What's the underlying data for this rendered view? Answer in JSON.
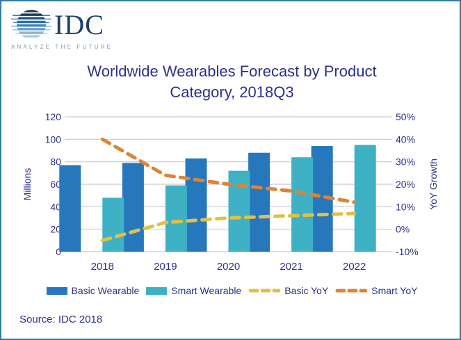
{
  "logo": {
    "brand": "IDC",
    "tagline": "ANALYZE THE FUTURE"
  },
  "header": {
    "title": "Worldwide Wearables Forecast by Product Category, 2018Q3",
    "title_lines": [
      "Worldwide Wearables Forecast by Product",
      "Category, 2018Q3"
    ]
  },
  "source": "Source: IDC 2018",
  "colors": {
    "border": "#2e7ca3",
    "title_text": "#2b3189",
    "axis_text": "#2b3189",
    "gridline": "#c7c9d4",
    "basic_bar": "#2777BC",
    "smart_bar": "#3FB1C5",
    "basic_yoy_line": "#E3C043",
    "smart_yoy_line": "#DD8435"
  },
  "chart_data": {
    "type": "bar",
    "subtype": "bar+line combo, dual axis",
    "title": "Worldwide Wearables Forecast by Product Category, 2018Q3",
    "categories": [
      "2018",
      "2019",
      "2020",
      "2021",
      "2022"
    ],
    "series": [
      {
        "name": "Basic Wearable",
        "type": "bar",
        "axis": "left",
        "color": "#2777BC",
        "values": [
          77,
          79,
          83,
          88,
          94
        ]
      },
      {
        "name": "Smart Wearable",
        "type": "bar",
        "axis": "left",
        "color": "#3FB1C5",
        "values": [
          48,
          59,
          72,
          84,
          95
        ]
      },
      {
        "name": "Basic YoY",
        "type": "line",
        "style": "dashed",
        "axis": "right",
        "color": "#E3C043",
        "values": [
          -5,
          3,
          5,
          6,
          7
        ]
      },
      {
        "name": "Smart YoY",
        "type": "line",
        "style": "dashed",
        "axis": "right",
        "color": "#DD8435",
        "values": [
          40,
          24,
          20,
          17,
          12
        ]
      }
    ],
    "left_axis": {
      "label": "Millions",
      "min": 0,
      "max": 120,
      "tick_step": 20,
      "ticks": [
        "0",
        "20",
        "40",
        "60",
        "80",
        "100",
        "120"
      ]
    },
    "right_axis": {
      "label": "YoY Growth",
      "min": -10,
      "max": 50,
      "tick_step": 10,
      "ticks": [
        "-10%",
        "0%",
        "10%",
        "20%",
        "30%",
        "40%",
        "50%"
      ],
      "unit": "%"
    },
    "grid": true,
    "legend_position": "bottom"
  }
}
